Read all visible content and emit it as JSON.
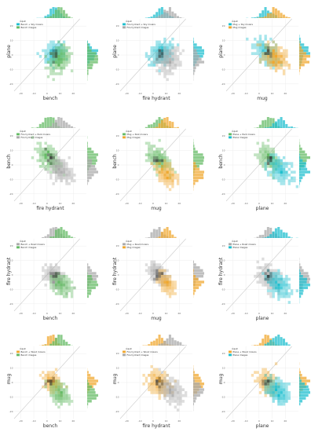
{
  "colors": {
    "plane": "#1fbfcf",
    "bench": "#66bb66",
    "fire hydrant": "#aaaaaa",
    "mug": "#f0a830",
    "diag": "#cccccc",
    "grid": "#eeeeee"
  },
  "chart_data": [
    {
      "type": "heatmap",
      "row": "plane",
      "col": "bench",
      "xlabel": "bench",
      "ylabel": "plane",
      "legend_title": "input",
      "series": [
        {
          "name": "Bench + Sky moiers",
          "color_key": "plane"
        },
        {
          "name": "Bench images",
          "color_key": "bench"
        }
      ],
      "xticks": [
        -20,
        -10,
        0,
        10,
        20
      ],
      "yticks": [
        -20,
        -10,
        0,
        10,
        20
      ],
      "xlim": [
        -25,
        30
      ],
      "ylim": [
        -25,
        25
      ],
      "grid": true,
      "legend_position": "top-left",
      "diagonal": true,
      "clusters": [
        {
          "key": "plane",
          "cx": 6,
          "cy": 1,
          "spread": 3.5,
          "corr": 0.3
        },
        {
          "key": "bench",
          "cx": 10,
          "cy": -3,
          "spread": 4,
          "corr": 0.2
        }
      ]
    },
    {
      "type": "heatmap",
      "row": "plane",
      "col": "fire hydrant",
      "xlabel": "fire hydrant",
      "ylabel": "plane",
      "legend_title": "input",
      "series": [
        {
          "name": "Fire hydrant + Sky moiers",
          "color_key": "plane"
        },
        {
          "name": "Fire hydrant images",
          "color_key": "fire hydrant"
        }
      ],
      "xticks": [
        -20,
        -10,
        0,
        10,
        20
      ],
      "yticks": [
        -20,
        -10,
        0,
        10,
        20
      ],
      "xlim": [
        -25,
        30
      ],
      "ylim": [
        -25,
        25
      ],
      "grid": true,
      "legend_position": "top-left",
      "diagonal": true,
      "clusters": [
        {
          "key": "plane",
          "cx": 6,
          "cy": 1,
          "spread": 4,
          "corr": 0.3
        },
        {
          "key": "fire hydrant",
          "cx": 12,
          "cy": -4,
          "spread": 4,
          "corr": 0.2
        }
      ]
    },
    {
      "type": "heatmap",
      "row": "plane",
      "col": "mug",
      "xlabel": "mug",
      "ylabel": "plane",
      "legend_title": "input",
      "series": [
        {
          "name": "Mug + Sky moiers",
          "color_key": "plane"
        },
        {
          "name": "Mug images",
          "color_key": "mug"
        }
      ],
      "xticks": [
        -20,
        -10,
        0,
        10,
        20
      ],
      "yticks": [
        -20,
        -10,
        0,
        10,
        20
      ],
      "xlim": [
        -25,
        30
      ],
      "ylim": [
        -25,
        25
      ],
      "grid": true,
      "legend_position": "top-left",
      "diagonal": true,
      "clusters": [
        {
          "key": "plane",
          "cx": 6,
          "cy": 2,
          "spread": 4,
          "corr": -0.5
        },
        {
          "key": "mug",
          "cx": 12,
          "cy": -2,
          "spread": 4,
          "corr": -0.3
        }
      ]
    },
    {
      "type": "heatmap",
      "row": "bench",
      "col": "fire hydrant",
      "xlabel": "fire hydrant",
      "ylabel": "bench",
      "legend_title": "input",
      "series": [
        {
          "name": "Fire hydrant + Park moiers",
          "color_key": "bench"
        },
        {
          "name": "Fire hydrant images",
          "color_key": "fire hydrant"
        }
      ],
      "xticks": [
        -20,
        -10,
        0,
        10,
        20
      ],
      "yticks": [
        -20,
        -10,
        0,
        10,
        20
      ],
      "xlim": [
        -25,
        30
      ],
      "ylim": [
        -25,
        25
      ],
      "grid": true,
      "legend_position": "top-left",
      "diagonal": true,
      "clusters": [
        {
          "key": "bench",
          "cx": 2,
          "cy": 5,
          "spread": 4,
          "corr": -0.4
        },
        {
          "key": "fire hydrant",
          "cx": 10,
          "cy": -3,
          "spread": 4,
          "corr": -0.4
        }
      ]
    },
    {
      "type": "heatmap",
      "row": "bench",
      "col": "mug",
      "xlabel": "mug",
      "ylabel": "bench",
      "legend_title": "input",
      "series": [
        {
          "name": "Mug + Park moiers",
          "color_key": "bench"
        },
        {
          "name": "Mug images",
          "color_key": "mug"
        }
      ],
      "xticks": [
        -20,
        -10,
        0,
        10,
        20
      ],
      "yticks": [
        -20,
        -10,
        0,
        10,
        20
      ],
      "xlim": [
        -25,
        30
      ],
      "ylim": [
        -25,
        25
      ],
      "grid": true,
      "legend_position": "top-left",
      "diagonal": true,
      "clusters": [
        {
          "key": "bench",
          "cx": 4,
          "cy": 4,
          "spread": 4,
          "corr": -0.4
        },
        {
          "key": "mug",
          "cx": 10,
          "cy": -6,
          "spread": 3.5,
          "corr": -0.4
        }
      ]
    },
    {
      "type": "heatmap",
      "row": "bench",
      "col": "plane",
      "xlabel": "plane",
      "ylabel": "bench",
      "legend_title": "input",
      "series": [
        {
          "name": "Plane + Park moiers",
          "color_key": "bench"
        },
        {
          "name": "Plane images",
          "color_key": "plane"
        }
      ],
      "xticks": [
        -20,
        -10,
        0,
        10,
        20
      ],
      "yticks": [
        -20,
        -10,
        0,
        10,
        20
      ],
      "xlim": [
        -25,
        30
      ],
      "ylim": [
        -25,
        25
      ],
      "grid": true,
      "legend_position": "top-left",
      "diagonal": true,
      "clusters": [
        {
          "key": "bench",
          "cx": 8,
          "cy": 4,
          "spread": 4,
          "corr": -0.5
        },
        {
          "key": "plane",
          "cx": 16,
          "cy": -3,
          "spread": 4,
          "corr": -0.4
        }
      ]
    },
    {
      "type": "heatmap",
      "row": "fire hydrant",
      "col": "bench",
      "xlabel": "bench",
      "ylabel": "fire hydrant",
      "legend_title": "input",
      "series": [
        {
          "name": "Bench + Road moiers",
          "color_key": "fire hydrant"
        },
        {
          "name": "Bench images",
          "color_key": "bench"
        }
      ],
      "xticks": [
        -20,
        -10,
        0,
        10,
        20
      ],
      "yticks": [
        -20,
        -10,
        0,
        10,
        20
      ],
      "xlim": [
        -25,
        30
      ],
      "ylim": [
        -25,
        25
      ],
      "grid": true,
      "legend_position": "top-left",
      "diagonal": true,
      "clusters": [
        {
          "key": "fire hydrant",
          "cx": 6,
          "cy": -1,
          "spread": 3.5,
          "corr": -0.3
        },
        {
          "key": "bench",
          "cx": 11,
          "cy": -7,
          "spread": 3.5,
          "corr": -0.3
        }
      ]
    },
    {
      "type": "heatmap",
      "row": "fire hydrant",
      "col": "mug",
      "xlabel": "mug",
      "ylabel": "fire hydrant",
      "legend_title": "input",
      "series": [
        {
          "name": "Mug + Road moiers",
          "color_key": "fire hydrant"
        },
        {
          "name": "Mug images",
          "color_key": "mug"
        }
      ],
      "xticks": [
        -20,
        -10,
        0,
        10,
        20
      ],
      "yticks": [
        -20,
        -10,
        0,
        10,
        20
      ],
      "xlim": [
        -25,
        30
      ],
      "ylim": [
        -25,
        25
      ],
      "grid": true,
      "legend_position": "top-left",
      "diagonal": true,
      "clusters": [
        {
          "key": "fire hydrant",
          "cx": 4,
          "cy": 1,
          "spread": 3.5,
          "corr": -0.6
        },
        {
          "key": "mug",
          "cx": 10,
          "cy": -6,
          "spread": 3,
          "corr": -0.5
        }
      ]
    },
    {
      "type": "heatmap",
      "row": "fire hydrant",
      "col": "plane",
      "xlabel": "plane",
      "ylabel": "fire hydrant",
      "legend_title": "input",
      "series": [
        {
          "name": "Plane + Road moiers",
          "color_key": "fire hydrant"
        },
        {
          "name": "Plane images",
          "color_key": "plane"
        }
      ],
      "xticks": [
        -20,
        -10,
        0,
        10,
        20
      ],
      "yticks": [
        -20,
        -10,
        0,
        10,
        20
      ],
      "xlim": [
        -25,
        30
      ],
      "ylim": [
        -25,
        25
      ],
      "grid": true,
      "legend_position": "top-left",
      "diagonal": true,
      "clusters": [
        {
          "key": "fire hydrant",
          "cx": 8,
          "cy": -2,
          "spread": 4,
          "corr": -0.4
        },
        {
          "key": "plane",
          "cx": 15,
          "cy": -7,
          "spread": 4,
          "corr": -0.4
        }
      ]
    },
    {
      "type": "heatmap",
      "row": "mug",
      "col": "bench",
      "xlabel": "bench",
      "ylabel": "mug",
      "legend_title": "input",
      "series": [
        {
          "name": "Bench + Wood moiers",
          "color_key": "mug"
        },
        {
          "name": "Bench images",
          "color_key": "bench"
        }
      ],
      "xticks": [
        -20,
        -10,
        0,
        10,
        20
      ],
      "yticks": [
        -20,
        -10,
        0,
        10,
        20
      ],
      "xlim": [
        -25,
        30
      ],
      "ylim": [
        -25,
        25
      ],
      "grid": true,
      "legend_position": "top-left",
      "diagonal": true,
      "clusters": [
        {
          "key": "mug",
          "cx": 4,
          "cy": 0,
          "spread": 3,
          "corr": -0.3
        },
        {
          "key": "bench",
          "cx": 10,
          "cy": -8,
          "spread": 3.5,
          "corr": -0.4
        }
      ]
    },
    {
      "type": "heatmap",
      "row": "mug",
      "col": "fire hydrant",
      "xlabel": "fire hydrant",
      "ylabel": "mug",
      "legend_title": "input",
      "series": [
        {
          "name": "Fire hydrant + Wood moiers",
          "color_key": "mug"
        },
        {
          "name": "Fire hydrant images",
          "color_key": "fire hydrant"
        }
      ],
      "xticks": [
        -20,
        -10,
        0,
        10,
        20
      ],
      "yticks": [
        -20,
        -10,
        0,
        10,
        20
      ],
      "xlim": [
        -25,
        30
      ],
      "ylim": [
        -25,
        25
      ],
      "grid": true,
      "legend_position": "top-left",
      "diagonal": true,
      "clusters": [
        {
          "key": "mug",
          "cx": 4,
          "cy": 0,
          "spread": 4,
          "corr": -0.3
        },
        {
          "key": "fire hydrant",
          "cx": 14,
          "cy": -6,
          "spread": 4,
          "corr": -0.4
        }
      ]
    },
    {
      "type": "heatmap",
      "row": "mug",
      "col": "plane",
      "xlabel": "plane",
      "ylabel": "mug",
      "legend_title": "input",
      "series": [
        {
          "name": "Plane + Wood moiers",
          "color_key": "mug"
        },
        {
          "name": "Plane images",
          "color_key": "plane"
        }
      ],
      "xticks": [
        -20,
        -10,
        0,
        10,
        20
      ],
      "yticks": [
        -20,
        -10,
        0,
        10,
        20
      ],
      "xlim": [
        -25,
        30
      ],
      "ylim": [
        -25,
        25
      ],
      "grid": true,
      "legend_position": "top-left",
      "diagonal": true,
      "clusters": [
        {
          "key": "mug",
          "cx": 6,
          "cy": 0,
          "spread": 3.5,
          "corr": -0.3
        },
        {
          "key": "plane",
          "cx": 14,
          "cy": -6,
          "spread": 4,
          "corr": -0.4
        }
      ]
    }
  ]
}
